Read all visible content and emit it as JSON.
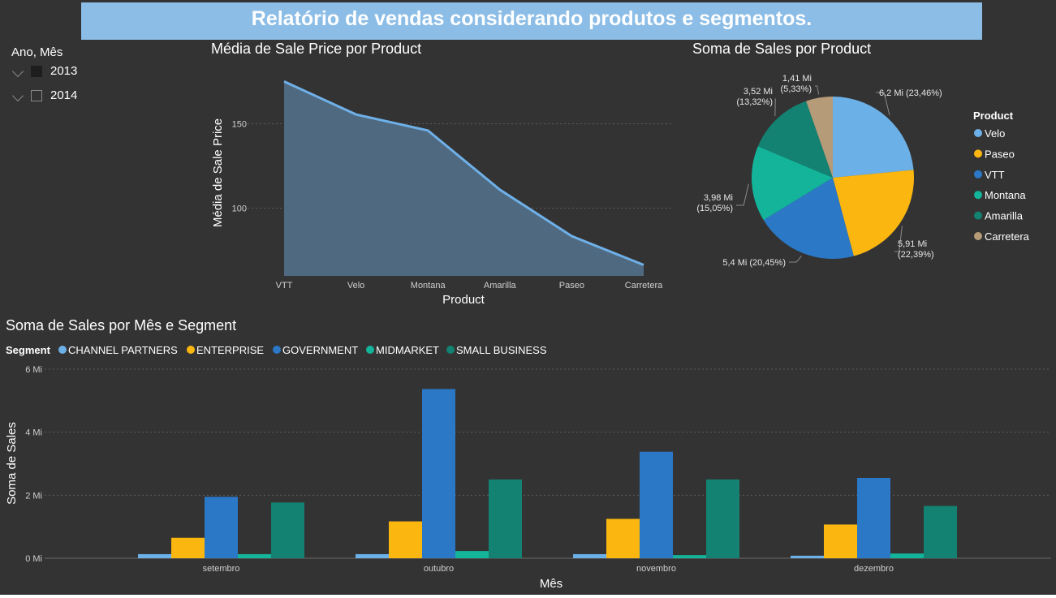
{
  "header": {
    "title": "Relatório de vendas considerando produtos e segmentos."
  },
  "slicer": {
    "title": "Ano, Mês",
    "items": [
      {
        "label": "2013",
        "checked": true
      },
      {
        "label": "2014",
        "checked": false
      }
    ]
  },
  "colors": {
    "background": "#333333",
    "banner": "#8cbde6",
    "area_fill": "#4f6a80",
    "area_line": "#6fb0e8",
    "Velo": "#6cb0e8",
    "Paseo": "#fbb710",
    "VTT": "#2a78c6",
    "Montana": "#13b49a",
    "Amarilla": "#138272",
    "Carretera": "#b59b78",
    "CHANNEL PARTNERS": "#6cb0e8",
    "ENTERPRISE": "#fbb710",
    "GOVERNMENT": "#2a78c6",
    "MIDMARKET": "#13b49a",
    "SMALL BUSINESS": "#138272"
  },
  "chart_data": [
    {
      "type": "area",
      "title": "Média de Sale Price por Product",
      "xlabel": "Product",
      "ylabel": "Média de Sale Price",
      "categories": [
        "VTT",
        "Velo",
        "Montana",
        "Amarilla",
        "Paseo",
        "Carretera"
      ],
      "values": [
        175,
        155.5,
        146,
        111,
        83.5,
        66.5
      ],
      "ylim": [
        60,
        180
      ],
      "yticks": [
        100,
        150
      ],
      "grid": true
    },
    {
      "type": "pie",
      "title": "Soma de Sales por Product",
      "legend_title": "Product",
      "legend_position": "right",
      "slices": [
        {
          "name": "Velo",
          "value": 6.2,
          "percent": 23.46,
          "label_value": "6,2 Mi",
          "label_percent": "(23,46%)"
        },
        {
          "name": "Paseo",
          "value": 5.91,
          "percent": 22.39,
          "label_value": "5,91 Mi",
          "label_percent": "(22,39%)"
        },
        {
          "name": "VTT",
          "value": 5.4,
          "percent": 20.45,
          "label_value": "5,4 Mi",
          "label_percent": "(20,45%)"
        },
        {
          "name": "Montana",
          "value": 3.98,
          "percent": 15.05,
          "label_value": "3,98 Mi",
          "label_percent": "(15,05%)"
        },
        {
          "name": "Amarilla",
          "value": 3.52,
          "percent": 13.32,
          "label_value": "3,52 Mi",
          "label_percent": "(13,32%)"
        },
        {
          "name": "Carretera",
          "value": 1.41,
          "percent": 5.33,
          "label_value": "1,41 Mi",
          "label_percent": "(5,33%)"
        }
      ]
    },
    {
      "type": "bar",
      "title": "Soma de Sales por Mês e Segment",
      "xlabel": "Mês",
      "ylabel": "Soma de Sales",
      "legend_title": "Segment",
      "legend_position": "top-left",
      "categories": [
        "setembro",
        "outubro",
        "novembro",
        "dezembro"
      ],
      "ylim": [
        0,
        6
      ],
      "yticks": [
        0,
        2,
        4,
        6
      ],
      "ytick_labels": [
        "0 Mi",
        "2 Mi",
        "4 Mi",
        "6 Mi"
      ],
      "grid": true,
      "series": [
        {
          "name": "CHANNEL PARTNERS",
          "values": [
            0.13,
            0.13,
            0.13,
            0.08
          ]
        },
        {
          "name": "ENTERPRISE",
          "values": [
            0.65,
            1.17,
            1.25,
            1.07
          ]
        },
        {
          "name": "GOVERNMENT",
          "values": [
            1.95,
            5.37,
            3.38,
            2.55
          ]
        },
        {
          "name": "MIDMARKET",
          "values": [
            0.13,
            0.23,
            0.1,
            0.15
          ]
        },
        {
          "name": "SMALL BUSINESS",
          "values": [
            1.77,
            2.5,
            2.5,
            1.66
          ]
        }
      ]
    }
  ]
}
